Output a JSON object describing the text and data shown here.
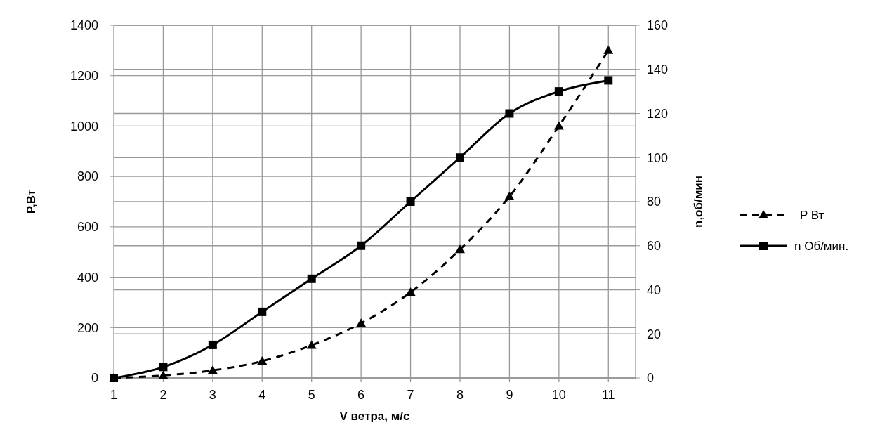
{
  "chart_data": {
    "type": "line",
    "xlabel": "V ветра, м/с",
    "ylabel": "P,Вт",
    "y2label": "n,об/мин",
    "x": [
      1,
      2,
      3,
      4,
      5,
      6,
      7,
      8,
      9,
      10,
      11
    ],
    "xlim": [
      1,
      11.55
    ],
    "xticks": [
      1,
      2,
      3,
      4,
      5,
      6,
      7,
      8,
      9,
      10,
      11
    ],
    "ylim": [
      0,
      1400
    ],
    "yticks": [
      0,
      200,
      400,
      600,
      800,
      1000,
      1200,
      1400
    ],
    "y2lim": [
      0,
      160
    ],
    "y2ticks": [
      0,
      20,
      40,
      60,
      80,
      100,
      120,
      140,
      160
    ],
    "grid": true,
    "legend": "right",
    "series": [
      {
        "name": "P Вт",
        "color": "#000000",
        "marker": "triangle",
        "line_style": "dashed",
        "values": [
          0,
          10,
          30,
          67,
          130,
          217,
          340,
          510,
          720,
          1000,
          1300
        ]
      },
      {
        "name": "n Об/мин.",
        "color": "#000000",
        "marker": "square",
        "line_style": "solid",
        "axis": "y2",
        "values": [
          0,
          5,
          15,
          30,
          45,
          60,
          80,
          100,
          120,
          130,
          135
        ]
      }
    ]
  }
}
